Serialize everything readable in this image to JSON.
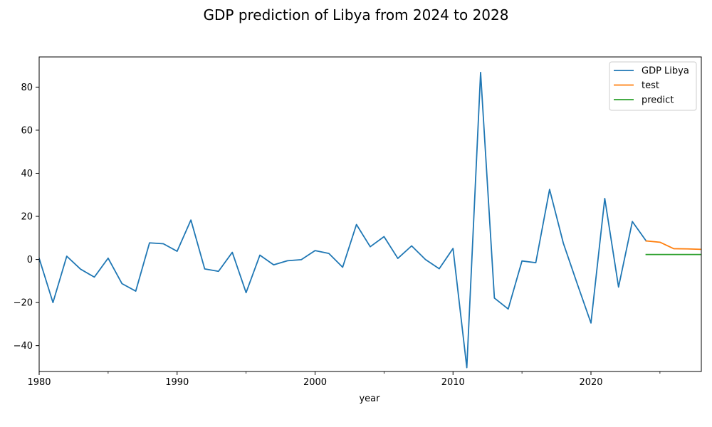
{
  "chart_data": {
    "type": "line",
    "title": "GDP prediction of Libya from 2024 to 2028",
    "xlabel": "year",
    "ylabel": "",
    "xlim": [
      1980,
      2028
    ],
    "ylim": [
      -52,
      94
    ],
    "x_ticks": [
      1980,
      1990,
      2000,
      2010,
      2020
    ],
    "x_tick_labels": [
      "1980",
      "1990",
      "2000",
      "2010",
      "2020"
    ],
    "x_minor_ticks": [
      1985,
      1995,
      2005,
      2015,
      2025
    ],
    "y_ticks": [
      -40,
      -20,
      0,
      20,
      40,
      60,
      80
    ],
    "y_tick_labels": [
      "−40",
      "−20",
      "0",
      "20",
      "40",
      "60",
      "80"
    ],
    "grid": false,
    "legend_position": "top-right",
    "series": [
      {
        "name": "GDP Libya",
        "color": "#1f77b4",
        "x": [
          1980,
          1981,
          1982,
          1983,
          1984,
          1985,
          1986,
          1987,
          1988,
          1989,
          1990,
          1991,
          1992,
          1993,
          1994,
          1995,
          1996,
          1997,
          1998,
          1999,
          2000,
          2001,
          2002,
          2003,
          2004,
          2005,
          2006,
          2007,
          2008,
          2009,
          2010,
          2011,
          2012,
          2013,
          2014,
          2015,
          2016,
          2017,
          2018,
          2019,
          2020,
          2021,
          2022,
          2023,
          2024
        ],
        "values": [
          0.5,
          -20.0,
          1.5,
          -4.5,
          -8.2,
          0.6,
          -11.2,
          -14.7,
          7.7,
          7.3,
          3.8,
          18.3,
          -4.4,
          -5.5,
          3.3,
          -15.4,
          2.0,
          -2.5,
          -0.6,
          -0.1,
          4.1,
          2.8,
          -3.6,
          16.2,
          5.9,
          10.6,
          0.5,
          6.3,
          0.0,
          -4.3,
          5.1,
          -50.2,
          86.8,
          -17.9,
          -23.0,
          -0.7,
          -1.5,
          32.5,
          7.5,
          -11.2,
          -29.5,
          28.3,
          -12.8,
          17.6,
          8.6
        ]
      },
      {
        "name": "test",
        "color": "#ff7f0e",
        "x": [
          2024,
          2025,
          2026,
          2027,
          2028
        ],
        "values": [
          8.6,
          8.0,
          5.0,
          4.9,
          4.7
        ]
      },
      {
        "name": "predict",
        "color": "#2ca02c",
        "x": [
          2024,
          2025,
          2026,
          2027,
          2028
        ],
        "values": [
          2.3,
          2.3,
          2.3,
          2.3,
          2.3
        ]
      }
    ]
  }
}
